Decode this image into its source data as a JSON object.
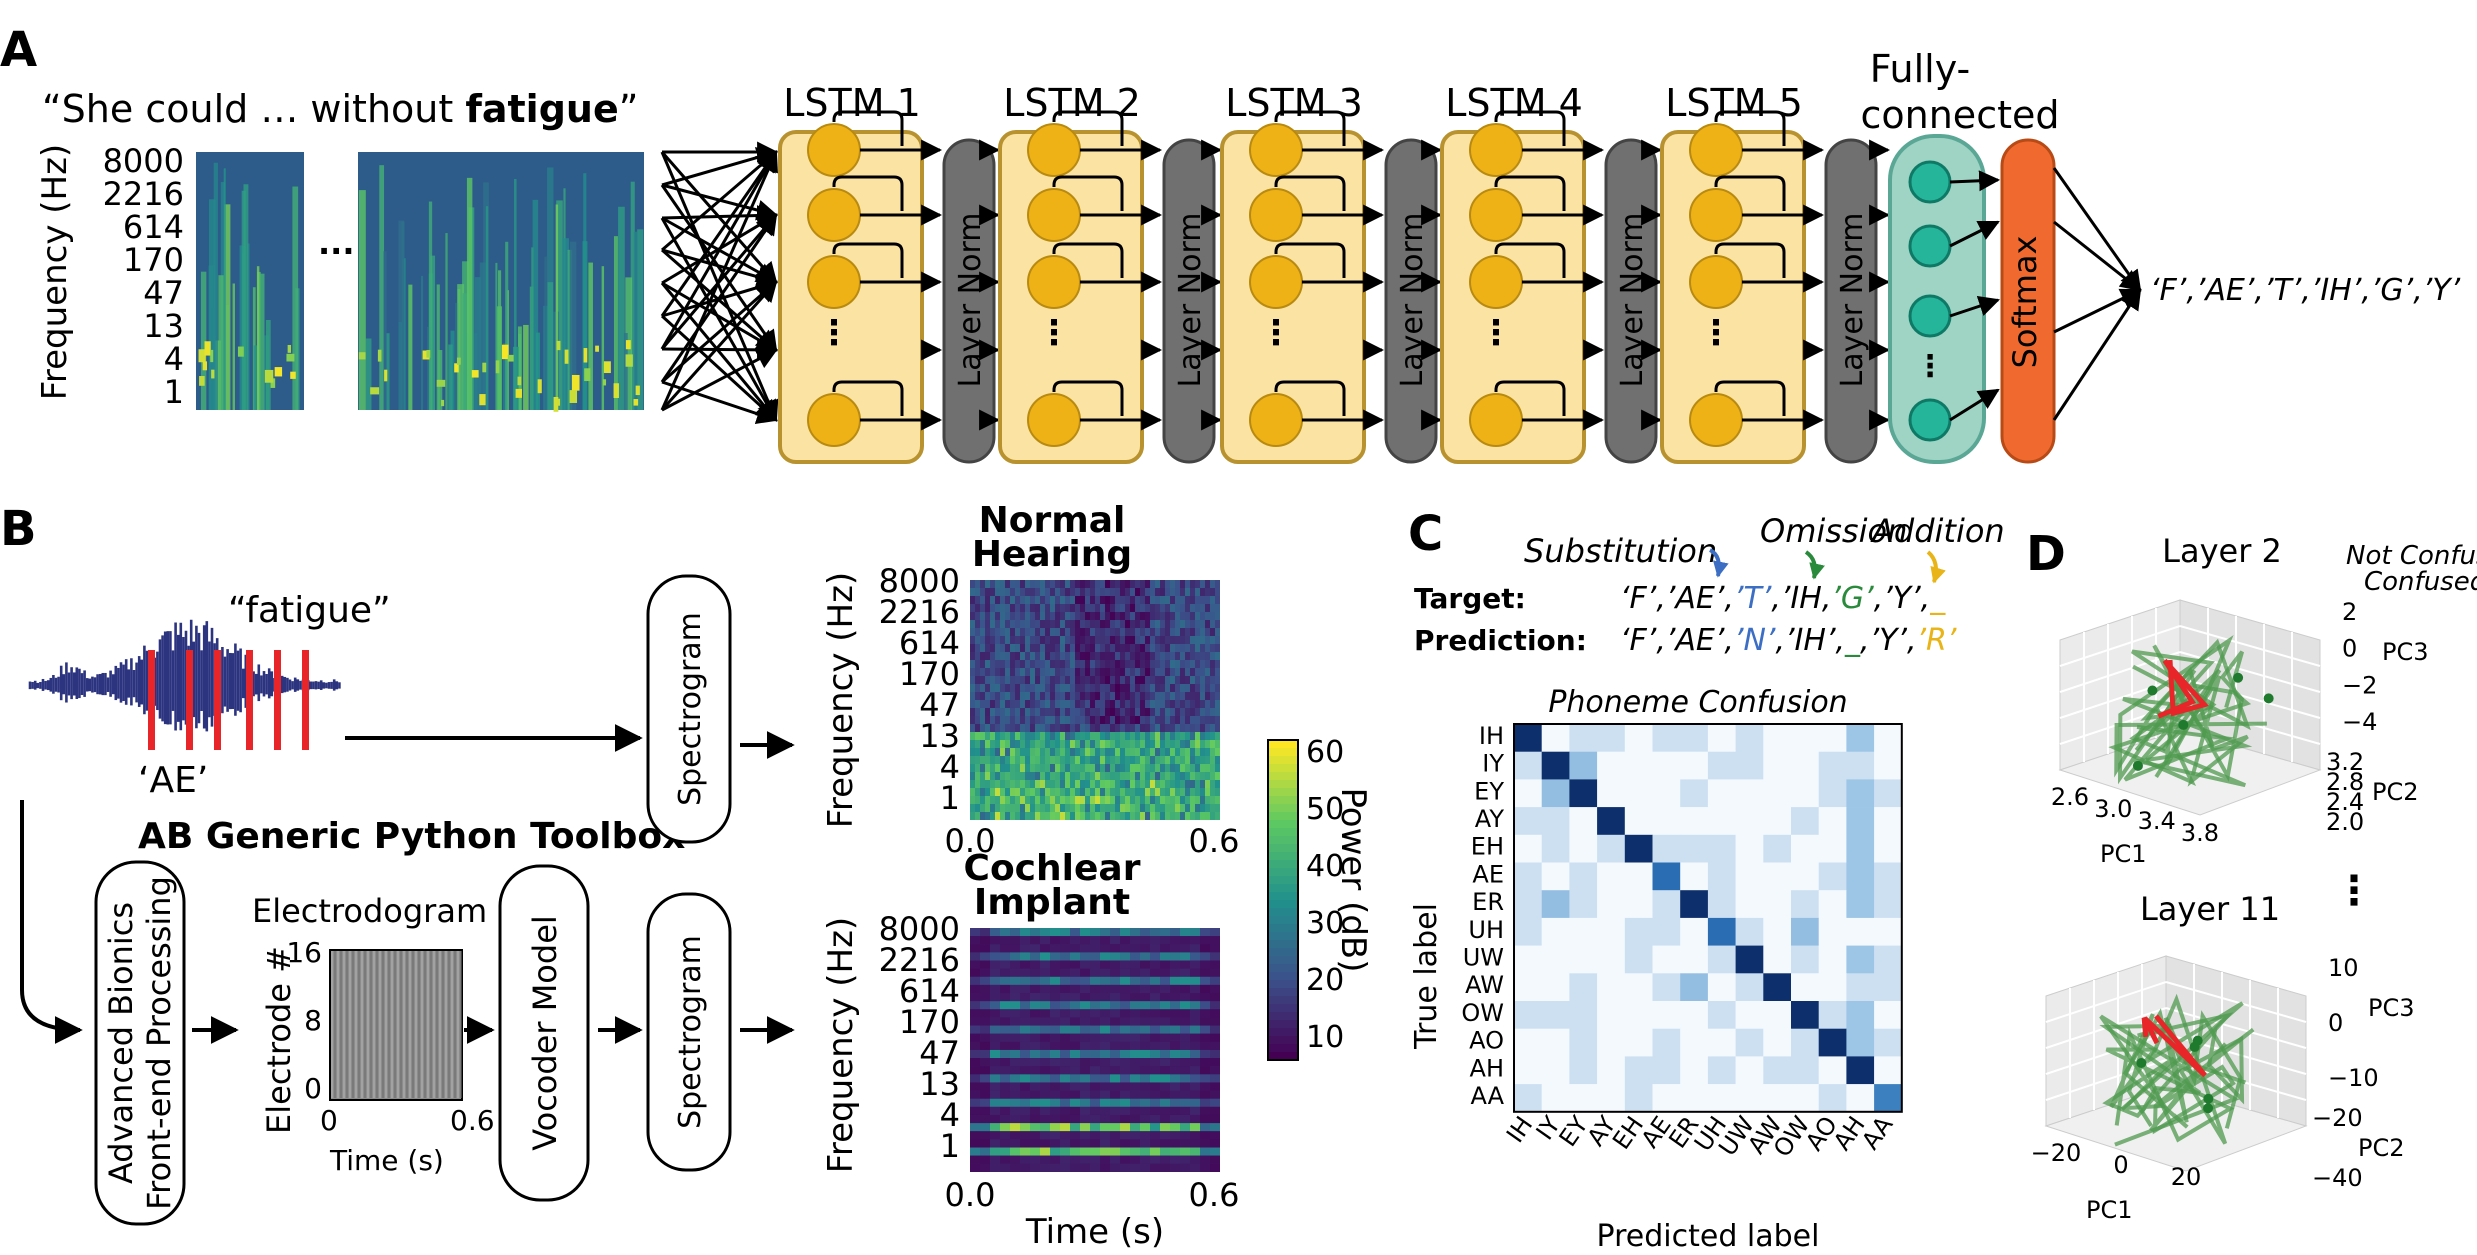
{
  "colors": {
    "lstm_fill": "#fbe3a4",
    "lstm_border": "#b8922e",
    "unit": "#eeb116",
    "norm": "#707070",
    "fc_fill": "#9fd3c4",
    "fc_unit": "#25b59b",
    "softmax": "#f06a2f",
    "red": "#e8262a",
    "blue": "#3c6fc4",
    "green": "#2a8a3c",
    "yellow": "#e8b417",
    "waveform": "#2c3480",
    "traj_green": "#4f9a4f"
  },
  "panel_a": {
    "letter": "A",
    "quote_start": "“She could  … without ",
    "quote_bold": "fatigue",
    "quote_end": "”",
    "ylabel": "Frequency (Hz)",
    "yticks": [
      "8000",
      "2216",
      "614",
      "170",
      "47",
      "13",
      "4",
      "1"
    ],
    "ellipsis": "···",
    "lstm_labels": [
      "LSTM 1",
      "LSTM 2",
      "LSTM 3",
      "LSTM 4",
      "LSTM 5"
    ],
    "layer_norm": "Layer Norm",
    "fc_label_1": "Fully-",
    "fc_label_2": "connected",
    "softmax": "Softmax",
    "output": "‘F’,’AE’,’T’,’IH’,’G’,’Y’"
  },
  "panel_b": {
    "letter": "B",
    "word": "“fatigue”",
    "phone": "‘AE’",
    "toolbox": "AB Generic Python Toolbox",
    "frontend_1": "Advanced Bionics",
    "frontend_2": "Front-end Processing",
    "electrodogram_title": "Electrodogram",
    "electrode_ylabel": "Electrode #",
    "electrode_yticks": [
      "16",
      "8",
      "0"
    ],
    "electrode_xticks": [
      "0",
      "0.6"
    ],
    "electrode_xlabel": "Time (s)",
    "vocoder": "Vocoder Model",
    "spectrogram": "Spectrogram",
    "nh_title_1": "Normal",
    "nh_title_2": "Hearing",
    "ci_title_1": "Cochlear",
    "ci_title_2": "Implant",
    "ylabel": "Frequency (Hz)",
    "yticks": [
      "8000",
      "2216",
      "614",
      "170",
      "47",
      "13",
      "4",
      "1"
    ],
    "xticks": [
      "0.0",
      "0.6"
    ],
    "xlabel": "Time (s)",
    "colorbar_label": "Power (dB)",
    "colorbar_ticks": [
      "60",
      "50",
      "40",
      "30",
      "20",
      "10"
    ]
  },
  "panel_c": {
    "letter": "C",
    "substitution": "Substitution",
    "omission": "Omission",
    "addition": "Addition",
    "target_label": "Target:",
    "prediction_label": "Prediction:",
    "target_seq": [
      {
        "t": "‘F’,’AE’,",
        "c": "black"
      },
      {
        "t": "’T’",
        "c": "blue"
      },
      {
        "t": ",’IH,",
        "c": "black"
      },
      {
        "t": "’G’",
        "c": "green"
      },
      {
        "t": ",’Y’,",
        "c": "black"
      },
      {
        "t": "_",
        "c": "yellow"
      }
    ],
    "prediction_seq": [
      {
        "t": "‘F’,’AE’,",
        "c": "black"
      },
      {
        "t": "’N’",
        "c": "blue"
      },
      {
        "t": ",’IH’,",
        "c": "black"
      },
      {
        "t": "_",
        "c": "green"
      },
      {
        "t": ",’Y’,",
        "c": "black"
      },
      {
        "t": "’R’",
        "c": "yellow"
      }
    ],
    "matrix_title": "Phoneme Confusion",
    "ylabel": "True label",
    "xlabel": "Predicted label",
    "labels": [
      "IH",
      "IY",
      "EY",
      "AY",
      "EH",
      "AE",
      "ER",
      "UH",
      "UW",
      "AW",
      "OW",
      "AO",
      "AH",
      "AA"
    ]
  },
  "panel_d": {
    "letter": "D",
    "layer2_title": "Layer 2",
    "layer11_title": "Layer 11",
    "legend_not_confused": "Not Confused",
    "legend_confused": "Confused",
    "ellipsis": "⋮",
    "layer2": {
      "pc1_ticks": [
        "2.6",
        "3.0",
        "3.4",
        "3.8"
      ],
      "pc2_ticks": [
        "3.2",
        "2.8",
        "2.4",
        "2.0"
      ],
      "pc3_ticks": [
        "2",
        "0",
        "−2",
        "−4"
      ],
      "pc1": "PC1",
      "pc2": "PC2",
      "pc3": "PC3"
    },
    "layer11": {
      "pc1_ticks": [
        "−20",
        "0",
        "20"
      ],
      "pc2_ticks": [
        "−20",
        "−40"
      ],
      "pc3_ticks": [
        "10",
        "0",
        "−10"
      ],
      "pc1": "PC1",
      "pc2": "PC2",
      "pc3": "PC3"
    }
  }
}
